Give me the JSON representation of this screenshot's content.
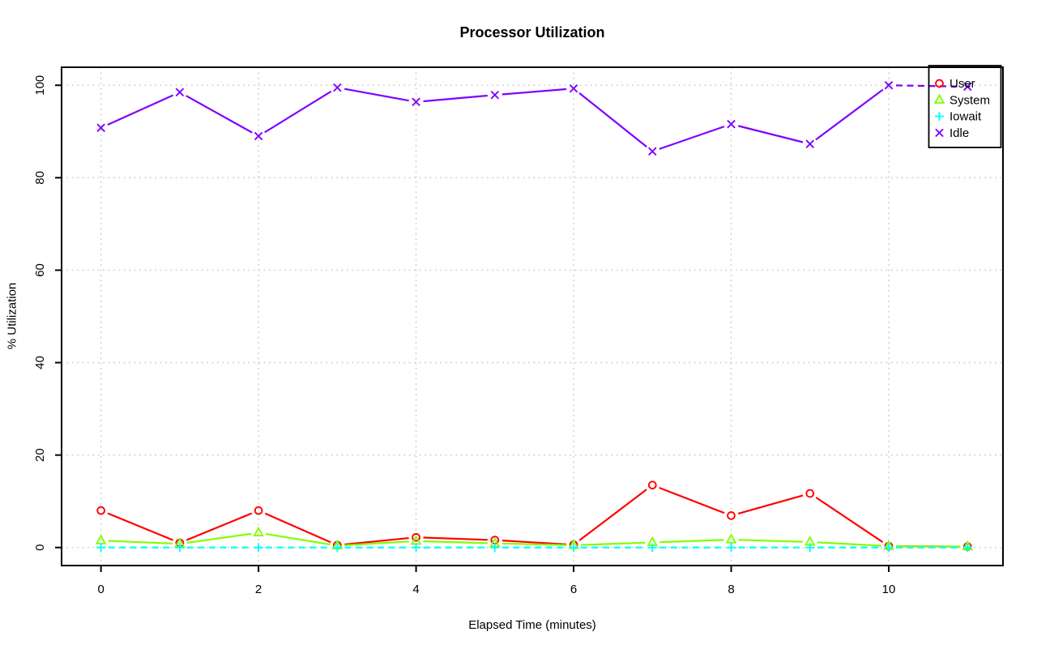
{
  "chart_data": {
    "type": "line",
    "title": "Processor Utilization",
    "xlabel": "Elapsed Time (minutes)",
    "ylabel": "% Utilization",
    "x": [
      0,
      1,
      2,
      3,
      4,
      5,
      6,
      7,
      8,
      9,
      10,
      11
    ],
    "xlim": [
      -0.5,
      11.45
    ],
    "ylim": [
      -3.9,
      103.9
    ],
    "xticks": [
      0,
      2,
      4,
      6,
      8,
      10
    ],
    "yticks": [
      0,
      20,
      40,
      60,
      80,
      100
    ],
    "grid": true,
    "grid_style": "dotted",
    "legend_position": "top-right",
    "series": [
      {
        "name": "User",
        "color": "#ff0000",
        "marker": "circle",
        "linestyle": "solid",
        "values": [
          8.0,
          1.0,
          8.0,
          0.5,
          2.2,
          1.6,
          0.6,
          13.5,
          6.9,
          11.7,
          0.3,
          0.2
        ]
      },
      {
        "name": "System",
        "color": "#80ff00",
        "marker": "triangle",
        "linestyle": "solid",
        "values": [
          1.5,
          0.8,
          3.2,
          0.4,
          1.4,
          0.9,
          0.5,
          1.1,
          1.7,
          1.2,
          0.3,
          0.2
        ]
      },
      {
        "name": "Iowait",
        "color": "#00ffff",
        "marker": "plus",
        "linestyle": "dashed",
        "values": [
          0,
          0,
          0,
          0,
          0,
          0,
          0,
          0,
          0,
          0,
          0,
          0
        ]
      },
      {
        "name": "Idle",
        "color": "#8000ff",
        "marker": "x",
        "linestyle": "solid",
        "dash_from_index": 10,
        "values": [
          90.8,
          98.5,
          89.0,
          99.5,
          96.4,
          97.9,
          99.3,
          85.7,
          91.6,
          87.3,
          100.0,
          99.7
        ]
      }
    ]
  },
  "legend": {
    "entries": [
      {
        "label": "User",
        "marker": "circle",
        "color": "#ff0000"
      },
      {
        "label": "System",
        "marker": "triangle",
        "color": "#80ff00"
      },
      {
        "label": "Iowait",
        "marker": "plus",
        "color": "#00ffff"
      },
      {
        "label": "Idle",
        "marker": "x",
        "color": "#8000ff"
      }
    ]
  },
  "colors": {
    "background": "#ffffff",
    "axis": "#000000",
    "grid": "#cfcfcf",
    "text": "#000000"
  }
}
